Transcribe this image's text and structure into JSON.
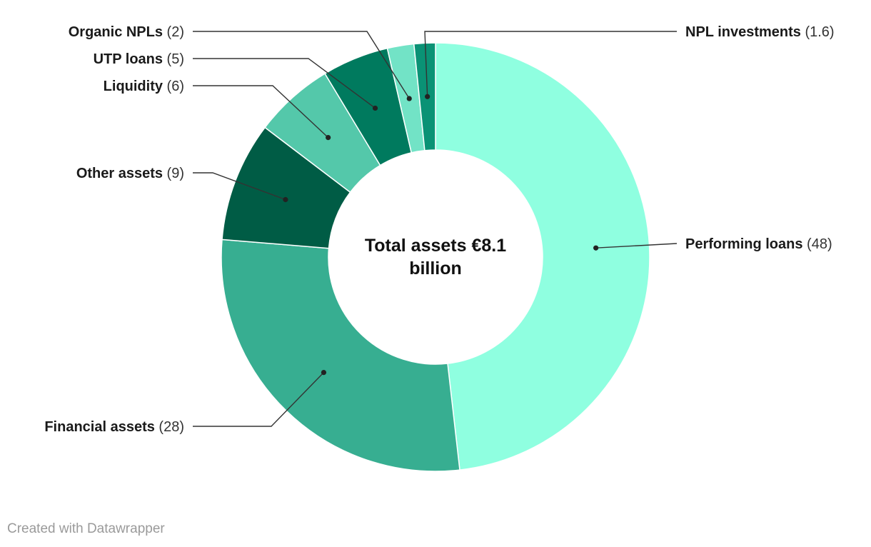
{
  "chart_data": {
    "type": "pie",
    "center_label_lines": [
      "Total assets €8.1",
      "billion"
    ],
    "slices": [
      {
        "label": "Performing loans",
        "value_text": "(48)",
        "value": 48,
        "color": "#8fffe0"
      },
      {
        "label": "Financial assets",
        "value_text": "(28)",
        "value": 28,
        "color": "#37ae91"
      },
      {
        "label": "Other assets",
        "value_text": "(9)",
        "value": 9,
        "color": "#005c45"
      },
      {
        "label": "Liquidity",
        "value_text": "(6)",
        "value": 6,
        "color": "#54c8aa"
      },
      {
        "label": "UTP loans",
        "value_text": "(5)",
        "value": 5,
        "color": "#007a5e"
      },
      {
        "label": "Organic NPLs",
        "value_text": "(2)",
        "value": 2,
        "color": "#72e3c6"
      },
      {
        "label": "NPL investments",
        "value_text": "(1.6)",
        "value": 1.6,
        "color": "#0a9275"
      }
    ]
  },
  "footer": {
    "credit": "Created with Datawrapper"
  }
}
